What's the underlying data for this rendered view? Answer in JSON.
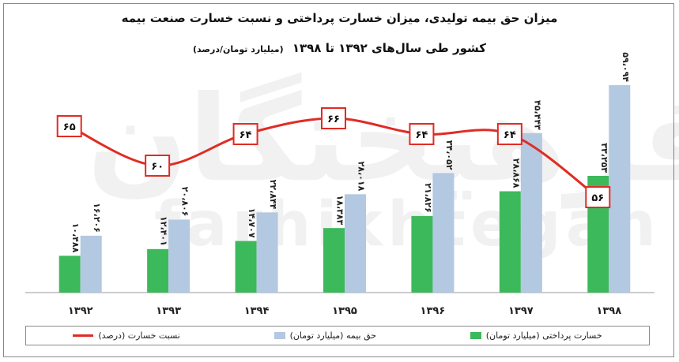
{
  "header": {
    "title_line1": "میزان حق بیمه تولیدی، میزان خسارت پرداختی و نسبت خسارت صنعت بیمه",
    "title_line2": "کشور طی سال‌های ۱۳۹۲ تا ۱۳۹۸",
    "unit": "(میلیارد تومان/درصد)"
  },
  "watermark": {
    "fa": "فرهیختگان",
    "en": "farhikhtegan"
  },
  "colors": {
    "loss": "#3cb95a",
    "premium": "#b3c8e1",
    "ratio": "#e02c24",
    "ratio_box": "#e02c24"
  },
  "chart_data": {
    "type": "bar",
    "categories": [
      "۱۳۹۲",
      "۱۳۹۳",
      "۱۳۹۴",
      "۱۳۹۵",
      "۱۳۹۶",
      "۱۳۹۷",
      "۱۳۹۸"
    ],
    "series": [
      {
        "name": "خسارت پرداختی (میلیارد تومان)",
        "values": [
          10488,
          12401,
          14707,
          18383,
          21826,
          28868,
          33253
        ],
        "labels": [
          "۱۰،۴۸۸",
          "۱۲،۴۰۱",
          "۱۴،۷۰۷",
          "۱۸،۳۸۳",
          "۲۱،۸۲۶",
          "۲۸،۸۶۸",
          "۳۳،۲۵۳"
        ]
      },
      {
        "name": "حق بیمه (میلیارد تومان)",
        "values": [
          16206,
          20806,
          22844,
          28018,
          34052,
          45443,
          59094
        ],
        "labels": [
          "۱۶،۲۰۶",
          "۲۰،۸۰۶",
          "۲۲،۸۴۴",
          "۲۸،۰۱۸",
          "۳۴،۰۵۲",
          "۴۵،۴۴۳",
          "۵۹،۰۹۴"
        ]
      }
    ],
    "line": {
      "name": "نسبت خسارت (درصد)",
      "values": [
        65,
        60,
        64,
        66,
        64,
        64,
        56
      ],
      "labels": [
        "۶۵",
        "۶۰",
        "۶۴",
        "۶۶",
        "۶۴",
        "۶۴",
        "۵۶"
      ]
    },
    "legend_position": "bottom",
    "grid": false
  }
}
